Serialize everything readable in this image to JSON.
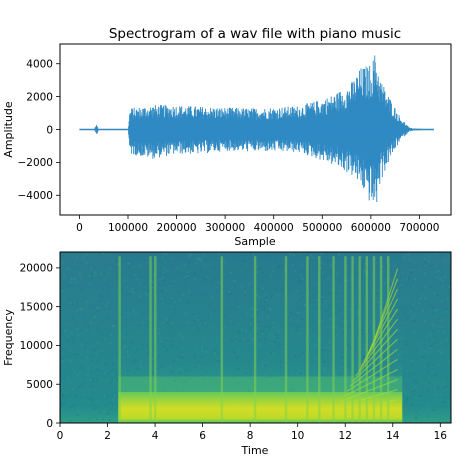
{
  "chart_data": [
    {
      "type": "line",
      "title": "Spectrogram of a wav file with piano music",
      "xlabel": "Sample",
      "ylabel": "Amplitude",
      "xlim": [
        -40000,
        765000
      ],
      "ylim": [
        -5200,
        5200
      ],
      "xticks": [
        0,
        100000,
        200000,
        300000,
        400000,
        500000,
        600000,
        700000
      ],
      "yticks": [
        -4000,
        -2000,
        0,
        2000,
        4000
      ],
      "grid": false,
      "series": [
        {
          "color": "#2f8ac4",
          "x": [
            0,
            30000,
            35000,
            40000,
            100000,
            104000,
            150000,
            200000,
            250000,
            300000,
            350000,
            400000,
            450000,
            500000,
            530000,
            560000,
            580000,
            600000,
            610000,
            620000,
            640000,
            660000,
            680000,
            700000,
            730000
          ],
          "y_max": [
            0,
            0,
            350,
            0,
            0,
            1300,
            1500,
            1500,
            1400,
            1350,
            1300,
            1350,
            1450,
            1850,
            2250,
            2900,
            3800,
            4000,
            4800,
            3100,
            1900,
            800,
            100,
            50,
            0
          ],
          "y_min": [
            0,
            0,
            -400,
            0,
            0,
            -1500,
            -1800,
            -1500,
            -1500,
            -1300,
            -1350,
            -1350,
            -1400,
            -1900,
            -2300,
            -2800,
            -3500,
            -4600,
            -5000,
            -3200,
            -1800,
            -700,
            -100,
            -50,
            0
          ]
        }
      ]
    },
    {
      "type": "heatmap",
      "xlabel": "Time",
      "ylabel": "Frequency",
      "xlim": [
        0,
        16.45
      ],
      "ylim": [
        0,
        22050
      ],
      "xticks": [
        0,
        2,
        4,
        6,
        8,
        10,
        12,
        14,
        16
      ],
      "yticks": [
        0,
        5000,
        10000,
        15000,
        20000
      ],
      "grid": false,
      "colormap": "viridis",
      "onset_times": [
        2.5,
        3.8,
        4.0,
        6.8,
        8.2,
        9.5,
        10.4,
        10.9,
        11.5,
        12.0,
        12.3,
        12.6,
        12.9,
        13.2,
        13.5,
        13.8
      ],
      "bright_band_hz": [
        500,
        2500
      ],
      "music_span": [
        2.45,
        14.4
      ]
    }
  ],
  "colors": {
    "line": "#2f8ac4",
    "axes": "#000000",
    "spec_background": "#2a8f8a",
    "spec_low_band": "#c6de3a",
    "spec_mid": "#4bbd75"
  }
}
